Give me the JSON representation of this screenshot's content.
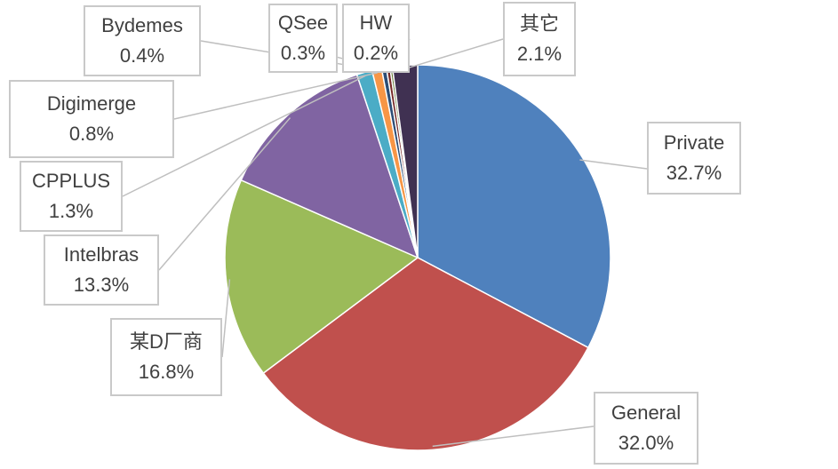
{
  "chart_data": {
    "type": "pie",
    "title": "",
    "slices": [
      {
        "name": "Private",
        "label": "32.7%",
        "value": 32.7,
        "color": "#4f81bd"
      },
      {
        "name": "General",
        "label": "32.0%",
        "value": 32.0,
        "color": "#c0504d"
      },
      {
        "name": "某D厂商",
        "label": "16.8%",
        "value": 16.8,
        "color": "#9bbb59"
      },
      {
        "name": "Intelbras",
        "label": "13.3%",
        "value": 13.3,
        "color": "#8064a2"
      },
      {
        "name": "CPPLUS",
        "label": "1.3%",
        "value": 1.3,
        "color": "#4bacc6"
      },
      {
        "name": "Digimerge",
        "label": "0.8%",
        "value": 0.8,
        "color": "#f79646"
      },
      {
        "name": "Bydemes",
        "label": "0.4%",
        "value": 0.4,
        "color": "#2c4d75"
      },
      {
        "name": "QSee",
        "label": "0.3%",
        "value": 0.3,
        "color": "#772c2a"
      },
      {
        "name": "HW",
        "label": "0.2%",
        "value": 0.2,
        "color": "#5f7530"
      },
      {
        "name": "其它",
        "label": "2.1%",
        "value": 2.1,
        "color": "#403152"
      }
    ],
    "legend": "none",
    "data_labels": "callouts"
  }
}
